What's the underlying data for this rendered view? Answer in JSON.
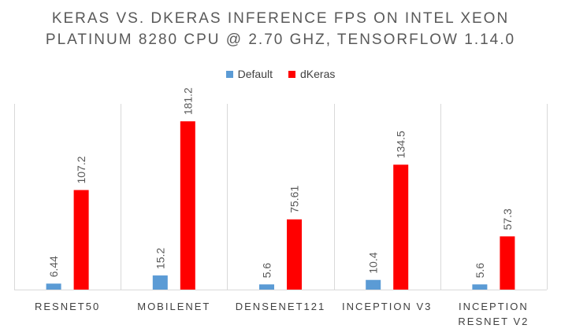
{
  "chart_data": {
    "type": "bar",
    "title_lines": [
      "KERAS VS. DKERAS INFERENCE FPS ON INTEL XEON",
      "PLATINUM 8280 CPU @ 2.70 GHZ, TENSORFLOW 1.14.0"
    ],
    "categories": [
      [
        "RESNET50"
      ],
      [
        "MOBILENET"
      ],
      [
        "DENSENET121"
      ],
      [
        "INCEPTION V3"
      ],
      [
        "INCEPTION",
        "RESNET V2"
      ]
    ],
    "series": [
      {
        "name": "Default",
        "color": "#5b9bd5",
        "values": [
          6.44,
          15.2,
          5.6,
          10.4,
          5.6
        ],
        "labels": [
          "6.44",
          "15.2",
          "5.6",
          "10.4",
          "5.6"
        ]
      },
      {
        "name": "dKeras",
        "color": "#ff0000",
        "values": [
          107.2,
          181.2,
          75.61,
          134.5,
          57.3
        ],
        "labels": [
          "107.2",
          "181.2",
          "75.61",
          "134.5",
          "57.3"
        ]
      }
    ],
    "ylim": [
      0,
      200
    ],
    "grid": false,
    "category_dividers": true,
    "legend_position": "top"
  }
}
